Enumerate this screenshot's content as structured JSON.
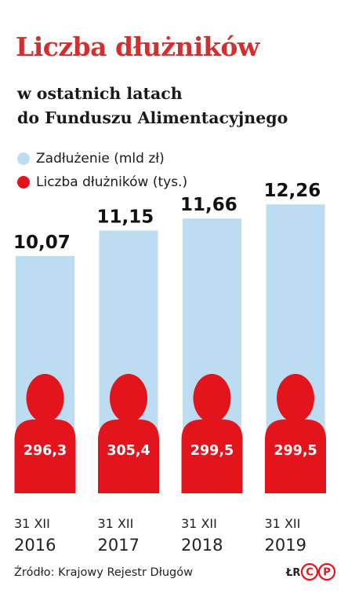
{
  "header": {
    "title": "Liczba dłużników",
    "subtitle_line1": "w ostatnich latach",
    "subtitle_line2": "do Funduszu Alimentacyjnego"
  },
  "chart_data": {
    "type": "bar",
    "title": "Liczba dłużników",
    "subtitle": "w ostatnich latach do Funduszu Alimentacyjnego",
    "categories": [
      {
        "day": "31 XII",
        "year": "2016"
      },
      {
        "day": "31 XII",
        "year": "2017"
      },
      {
        "day": "31 XII",
        "year": "2018"
      },
      {
        "day": "31 XII",
        "year": "2019"
      }
    ],
    "series": [
      {
        "name": "Zadłużenie (mld zł)",
        "color": "#bcdcf2",
        "values": [
          10.07,
          11.15,
          11.66,
          12.26
        ],
        "labels": [
          "10,07",
          "11,15",
          "11,66",
          "12,26"
        ]
      },
      {
        "name": "Liczba dłużników (tys.)",
        "color": "#e3141b",
        "values": [
          296.3,
          305.4,
          299.5,
          299.5
        ],
        "labels": [
          "296,3",
          "305,4",
          "299,5",
          "299,5"
        ],
        "marker": "person-icon"
      }
    ],
    "legend_position": "top-left",
    "grid": false
  },
  "footer": {
    "source": "Źródło: Krajowy Rejestr Długów",
    "credit": "ŁR",
    "logo_letters": [
      "C",
      "P"
    ]
  }
}
